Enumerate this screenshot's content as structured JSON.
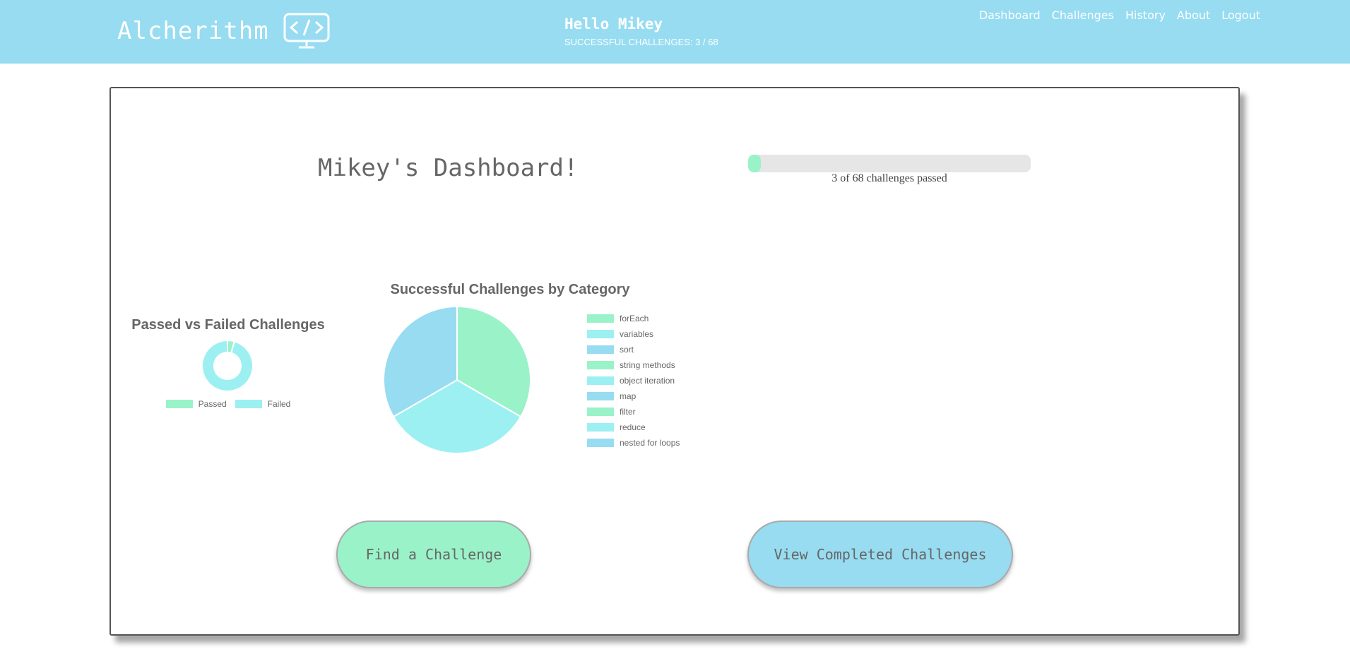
{
  "header": {
    "brand": "Alcherithm",
    "brand_icon": "code-monitor-icon",
    "greeting": "Hello Mikey",
    "success_line": "SUCCESSFUL CHALLENGES: 3 / 68",
    "nav": [
      "Dashboard",
      "Challenges",
      "History",
      "About",
      "Logout"
    ]
  },
  "dashboard": {
    "title": "Mikey's Dashboard!",
    "progress": {
      "passed": 3,
      "total": 68,
      "fraction": 0.044,
      "label": "3 of 68 challenges passed"
    }
  },
  "buttons": {
    "find": "Find a Challenge",
    "view_completed": "View Completed Challenges"
  },
  "colors": {
    "header_bg": "#97dcf1",
    "green": "#9af2c9",
    "cyan": "#9cf0f2",
    "blue": "#97dcf1"
  },
  "chart_data": [
    {
      "type": "pie",
      "variant": "doughnut",
      "title": "Passed vs Failed Challenges",
      "labels": [
        "Passed",
        "Failed"
      ],
      "values": [
        3,
        65
      ],
      "colors": [
        "#9af2c9",
        "#9cf0f2"
      ],
      "legend": "bottom"
    },
    {
      "type": "pie",
      "title": "Successful Challenges by Category",
      "labels": [
        "forEach",
        "variables",
        "sort",
        "string methods",
        "object iteration",
        "map",
        "filter",
        "reduce",
        "nested for loops"
      ],
      "values": [
        1,
        1,
        1,
        0,
        0,
        0,
        0,
        0,
        0
      ],
      "colors": [
        "#9af2c9",
        "#9cf0f2",
        "#97dcf1",
        "#9af2c9",
        "#9cf0f2",
        "#97dcf1",
        "#9af2c9",
        "#9cf0f2",
        "#97dcf1"
      ],
      "legend": "right"
    }
  ]
}
